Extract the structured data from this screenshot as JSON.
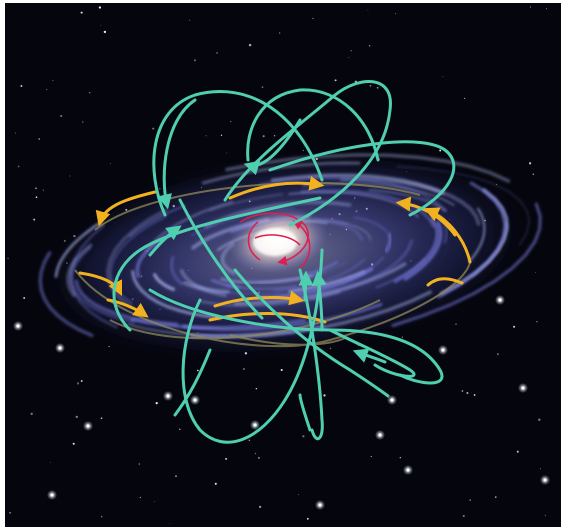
{
  "colors": {
    "frame": "#ffffff",
    "space": "#05060d",
    "galaxy_arm": "#7b7fe6",
    "galaxy_arm_light": "#b9c4ff",
    "galaxy_core": "#fff6e4",
    "halo_orbit": "#4fcfb0",
    "disk_orbit": "#f2b21f",
    "disk_orbit_faint": "#8f8a5a",
    "bulge_orbit": "#e01d4f",
    "star": "#ffffff"
  },
  "icons": [
    "halo-orbit-arrows",
    "disk-orbit-arrows",
    "bulge-orbit-arrows"
  ]
}
